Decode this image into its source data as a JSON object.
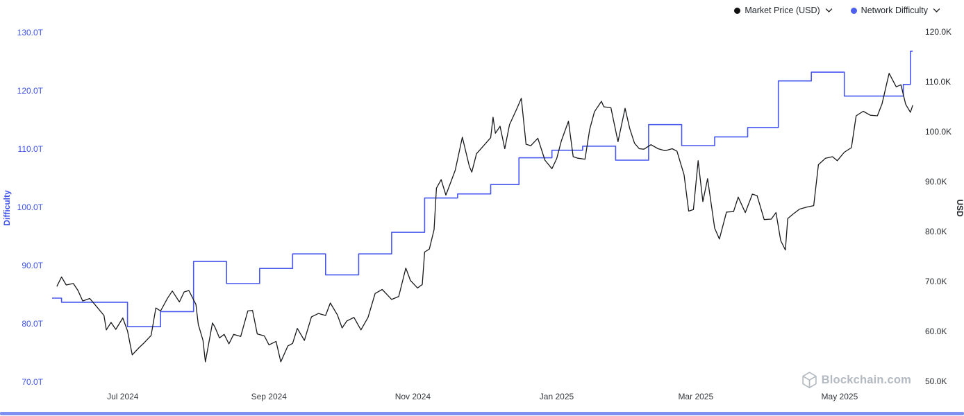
{
  "legend": {
    "items": [
      {
        "id": "market-price",
        "label": "Market Price (USD)",
        "color": "#111111"
      },
      {
        "id": "network-difficulty",
        "label": "Network Difficulty",
        "color": "#4c5ff0"
      }
    ]
  },
  "watermark": {
    "text": "Blockchain.com"
  },
  "chart_data": {
    "type": "line",
    "title": "",
    "grid": false,
    "legend_position": "top-right",
    "x_unit": "days since 2024-06-01",
    "x_axis": {
      "ticks": [
        {
          "day": 30,
          "label": "Jul 2024"
        },
        {
          "day": 92,
          "label": "Sep 2024"
        },
        {
          "day": 153,
          "label": "Nov 2024"
        },
        {
          "day": 214,
          "label": "Jan 2025"
        },
        {
          "day": 273,
          "label": "Mar 2025"
        },
        {
          "day": 334,
          "label": "May 2025"
        }
      ],
      "color": "#33373c"
    },
    "left_axis": {
      "title": "Difficulty",
      "color": "#3d51e8",
      "ylim": [
        70,
        130
      ],
      "ticks": [
        {
          "value": 130,
          "label": "130.0T"
        },
        {
          "value": 120,
          "label": "120.0T"
        },
        {
          "value": 110,
          "label": "110.0T"
        },
        {
          "value": 100,
          "label": "100.0T"
        },
        {
          "value": 90,
          "label": "90.0T"
        },
        {
          "value": 80,
          "label": "80.0T"
        },
        {
          "value": 70,
          "label": "70.0T"
        }
      ]
    },
    "right_axis": {
      "title": "USD",
      "color": "#24282d",
      "ylim": [
        50,
        120
      ],
      "ticks": [
        {
          "value": 120,
          "label": "120.0K"
        },
        {
          "value": 110,
          "label": "110.0K"
        },
        {
          "value": 100,
          "label": "100.0K"
        },
        {
          "value": 90,
          "label": "90.0K"
        },
        {
          "value": 80,
          "label": "80.0K"
        },
        {
          "value": 70,
          "label": "70.0K"
        },
        {
          "value": 60,
          "label": "60.0K"
        },
        {
          "value": 50,
          "label": "50.0K"
        }
      ]
    },
    "series": [
      {
        "name": "Network Difficulty",
        "axis": "left",
        "style": "step",
        "color": "#4656ee",
        "width": 1.6,
        "unit": "T",
        "points": [
          [
            0,
            84.4
          ],
          [
            4,
            83.7
          ],
          [
            32,
            79.5
          ],
          [
            46,
            82.1
          ],
          [
            60,
            90.7
          ],
          [
            74,
            86.9
          ],
          [
            88,
            89.5
          ],
          [
            102,
            92.0
          ],
          [
            116,
            88.4
          ],
          [
            130,
            92.0
          ],
          [
            144,
            95.7
          ],
          [
            158,
            101.6
          ],
          [
            172,
            102.3
          ],
          [
            186,
            103.9
          ],
          [
            198,
            108.5
          ],
          [
            212,
            109.8
          ],
          [
            225,
            110.5
          ],
          [
            239,
            108.1
          ],
          [
            253,
            114.2
          ],
          [
            267,
            110.6
          ],
          [
            281,
            112.1
          ],
          [
            295,
            113.7
          ],
          [
            308,
            121.7
          ],
          [
            322,
            123.2
          ],
          [
            336,
            119.1
          ],
          [
            361,
            121.1
          ],
          [
            364,
            126.8
          ]
        ]
      },
      {
        "name": "Market Price (USD)",
        "axis": "right",
        "style": "line",
        "color": "#16181b",
        "width": 1.3,
        "unit": "K",
        "points": [
          [
            2,
            69.0
          ],
          [
            4,
            70.9
          ],
          [
            6,
            69.3
          ],
          [
            9,
            69.6
          ],
          [
            11,
            68.2
          ],
          [
            13,
            66.1
          ],
          [
            16,
            66.6
          ],
          [
            19,
            64.9
          ],
          [
            22,
            63.2
          ],
          [
            23,
            60.3
          ],
          [
            25,
            61.8
          ],
          [
            27,
            60.4
          ],
          [
            30,
            62.7
          ],
          [
            32,
            60.1
          ],
          [
            34,
            55.3
          ],
          [
            37,
            56.8
          ],
          [
            39,
            57.7
          ],
          [
            42,
            59.2
          ],
          [
            44,
            64.7
          ],
          [
            46,
            64.1
          ],
          [
            49,
            66.7
          ],
          [
            51,
            68.1
          ],
          [
            54,
            65.9
          ],
          [
            56,
            67.9
          ],
          [
            58,
            68.2
          ],
          [
            61,
            65.4
          ],
          [
            62,
            61.4
          ],
          [
            64,
            58.2
          ],
          [
            65,
            53.9
          ],
          [
            68,
            61.7
          ],
          [
            69,
            60.9
          ],
          [
            71,
            58.7
          ],
          [
            73,
            59.4
          ],
          [
            75,
            57.5
          ],
          [
            77,
            59.4
          ],
          [
            80,
            59.0
          ],
          [
            83,
            64.1
          ],
          [
            85,
            64.2
          ],
          [
            87,
            59.5
          ],
          [
            90,
            59.1
          ],
          [
            92,
            57.3
          ],
          [
            95,
            58.0
          ],
          [
            97,
            53.9
          ],
          [
            100,
            57.1
          ],
          [
            102,
            57.6
          ],
          [
            104,
            60.6
          ],
          [
            107,
            58.2
          ],
          [
            110,
            62.9
          ],
          [
            113,
            63.6
          ],
          [
            116,
            63.2
          ],
          [
            118,
            65.7
          ],
          [
            121,
            63.3
          ],
          [
            123,
            60.7
          ],
          [
            125,
            62.1
          ],
          [
            128,
            62.8
          ],
          [
            131,
            60.3
          ],
          [
            134,
            62.8
          ],
          [
            137,
            67.6
          ],
          [
            140,
            68.4
          ],
          [
            142,
            67.4
          ],
          [
            144,
            66.4
          ],
          [
            147,
            67.0
          ],
          [
            150,
            72.7
          ],
          [
            152,
            70.2
          ],
          [
            155,
            68.7
          ],
          [
            157,
            69.4
          ],
          [
            158,
            75.9
          ],
          [
            160,
            76.5
          ],
          [
            162,
            80.4
          ],
          [
            163,
            88.7
          ],
          [
            165,
            90.4
          ],
          [
            167,
            87.3
          ],
          [
            169,
            89.8
          ],
          [
            171,
            92.3
          ],
          [
            174,
            98.9
          ],
          [
            177,
            93.0
          ],
          [
            178,
            91.9
          ],
          [
            180,
            95.6
          ],
          [
            183,
            97.2
          ],
          [
            186,
            98.8
          ],
          [
            187,
            102.9
          ],
          [
            188,
            99.7
          ],
          [
            190,
            101.1
          ],
          [
            192,
            96.6
          ],
          [
            194,
            101.4
          ],
          [
            197,
            104.5
          ],
          [
            199,
            106.7
          ],
          [
            201,
            97.5
          ],
          [
            203,
            97.2
          ],
          [
            206,
            98.7
          ],
          [
            209,
            94.3
          ],
          [
            212,
            92.6
          ],
          [
            214,
            94.6
          ],
          [
            216,
            98.2
          ],
          [
            219,
            102.1
          ],
          [
            221,
            95.0
          ],
          [
            223,
            94.7
          ],
          [
            226,
            94.5
          ],
          [
            228,
            100.5
          ],
          [
            230,
            104.0
          ],
          [
            233,
            106.1
          ],
          [
            234,
            105.0
          ],
          [
            237,
            104.8
          ],
          [
            240,
            98.0
          ],
          [
            243,
            104.7
          ],
          [
            245,
            100.6
          ],
          [
            247,
            97.7
          ],
          [
            249,
            96.6
          ],
          [
            251,
            96.5
          ],
          [
            254,
            97.4
          ],
          [
            257,
            96.6
          ],
          [
            260,
            96.2
          ],
          [
            263,
            96.6
          ],
          [
            265,
            96.1
          ],
          [
            268,
            91.4
          ],
          [
            270,
            84.1
          ],
          [
            272,
            84.4
          ],
          [
            274,
            94.2
          ],
          [
            276,
            86.0
          ],
          [
            278,
            90.6
          ],
          [
            281,
            80.7
          ],
          [
            283,
            78.5
          ],
          [
            286,
            83.9
          ],
          [
            289,
            84.0
          ],
          [
            291,
            86.9
          ],
          [
            294,
            83.8
          ],
          [
            297,
            87.5
          ],
          [
            299,
            87.2
          ],
          [
            302,
            82.4
          ],
          [
            305,
            82.5
          ],
          [
            307,
            83.8
          ],
          [
            309,
            78.2
          ],
          [
            311,
            76.3
          ],
          [
            312,
            82.6
          ],
          [
            314,
            83.4
          ],
          [
            317,
            84.5
          ],
          [
            320,
            84.9
          ],
          [
            323,
            85.2
          ],
          [
            325,
            93.4
          ],
          [
            328,
            94.7
          ],
          [
            331,
            95.0
          ],
          [
            333,
            94.2
          ],
          [
            336,
            95.9
          ],
          [
            339,
            96.8
          ],
          [
            341,
            103.2
          ],
          [
            344,
            104.1
          ],
          [
            347,
            103.3
          ],
          [
            350,
            103.2
          ],
          [
            352,
            105.6
          ],
          [
            354,
            109.7
          ],
          [
            355,
            111.7
          ],
          [
            358,
            109.0
          ],
          [
            360,
            109.4
          ],
          [
            362,
            105.5
          ],
          [
            364,
            103.9
          ],
          [
            365,
            105.3
          ]
        ]
      }
    ]
  }
}
